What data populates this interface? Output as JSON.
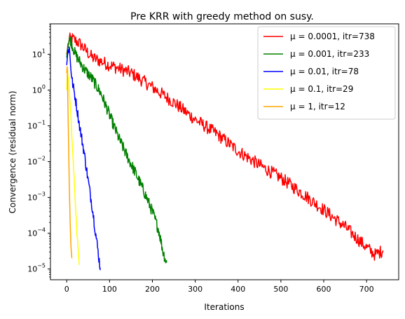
{
  "chart_data": {
    "type": "line",
    "title": "Pre KRR with greedy method on susy.",
    "xlabel": "Iterations",
    "ylabel": "Convergence (residual norm)",
    "xlim": [
      -38,
      775
    ],
    "ylim_log10": [
      -5.3,
      1.85
    ],
    "yscale": "log",
    "x_ticks": [
      0,
      100,
      200,
      300,
      400,
      500,
      600,
      700
    ],
    "y_ticks": [
      {
        "exp": 1,
        "label": "10"
      },
      {
        "exp": 0,
        "label": "10"
      },
      {
        "exp": -1,
        "label": "10"
      },
      {
        "exp": -2,
        "label": "10"
      },
      {
        "exp": -3,
        "label": "10"
      },
      {
        "exp": -4,
        "label": "10"
      },
      {
        "exp": -5,
        "label": "10"
      }
    ],
    "y_tick_exponents": [
      "1",
      "0",
      "−1",
      "−2",
      "−3",
      "−4",
      "−5"
    ],
    "grid": false,
    "legend_position": "top-right",
    "series": [
      {
        "name": "μ = 0.0001, itr=738",
        "color": "#ff0000",
        "noise": 0.18,
        "points": [
          [
            0,
            10
          ],
          [
            5,
            25
          ],
          [
            12,
            28
          ],
          [
            30,
            20
          ],
          [
            60,
            8
          ],
          [
            100,
            5
          ],
          [
            150,
            3
          ],
          [
            200,
            1.2
          ],
          [
            250,
            0.45
          ],
          [
            300,
            0.15
          ],
          [
            350,
            0.06
          ],
          [
            400,
            0.02
          ],
          [
            450,
            0.008
          ],
          [
            500,
            0.0035
          ],
          [
            550,
            0.0013
          ],
          [
            600,
            0.00045
          ],
          [
            650,
            0.00015
          ],
          [
            700,
            4e-05
          ],
          [
            720,
            2.5e-05
          ],
          [
            738,
            3.3e-05
          ]
        ]
      },
      {
        "name": "μ = 0.001, itr=233",
        "color": "#008000",
        "noise": 0.16,
        "points": [
          [
            0,
            8
          ],
          [
            3,
            20
          ],
          [
            8,
            27
          ],
          [
            20,
            10
          ],
          [
            40,
            4
          ],
          [
            60,
            2
          ],
          [
            80,
            0.8
          ],
          [
            100,
            0.2
          ],
          [
            120,
            0.05
          ],
          [
            140,
            0.015
          ],
          [
            160,
            0.005
          ],
          [
            180,
            0.0015
          ],
          [
            200,
            0.0004
          ],
          [
            215,
            0.00012
          ],
          [
            225,
            3e-05
          ],
          [
            233,
            1.5e-05
          ]
        ]
      },
      {
        "name": "μ = 0.01, itr=78",
        "color": "#0000ff",
        "noise": 0.15,
        "points": [
          [
            0,
            5
          ],
          [
            3,
            13
          ],
          [
            6,
            15
          ],
          [
            12,
            2
          ],
          [
            20,
            0.6
          ],
          [
            30,
            0.1
          ],
          [
            40,
            0.02
          ],
          [
            50,
            0.003
          ],
          [
            60,
            0.0005
          ],
          [
            70,
            6e-05
          ],
          [
            78,
            1.1e-05
          ]
        ]
      },
      {
        "name": "μ = 0.1, itr=29",
        "color": "#ffff00",
        "noise": 0.08,
        "points": [
          [
            0,
            1.0
          ],
          [
            2,
            4
          ],
          [
            4,
            2
          ],
          [
            8,
            0.5
          ],
          [
            12,
            0.05
          ],
          [
            16,
            0.006
          ],
          [
            20,
            0.0008
          ],
          [
            24,
            0.0001
          ],
          [
            29,
            1.3e-05
          ]
        ]
      },
      {
        "name": "μ = 1, itr=12",
        "color": "#ffa500",
        "noise": 0.0,
        "points": [
          [
            0,
            3
          ],
          [
            1,
            4.5
          ],
          [
            2,
            1.5
          ],
          [
            4,
            0.05
          ],
          [
            6,
            0.002
          ],
          [
            8,
            0.0002
          ],
          [
            10,
            4e-05
          ],
          [
            12,
            2e-05
          ]
        ]
      }
    ]
  }
}
